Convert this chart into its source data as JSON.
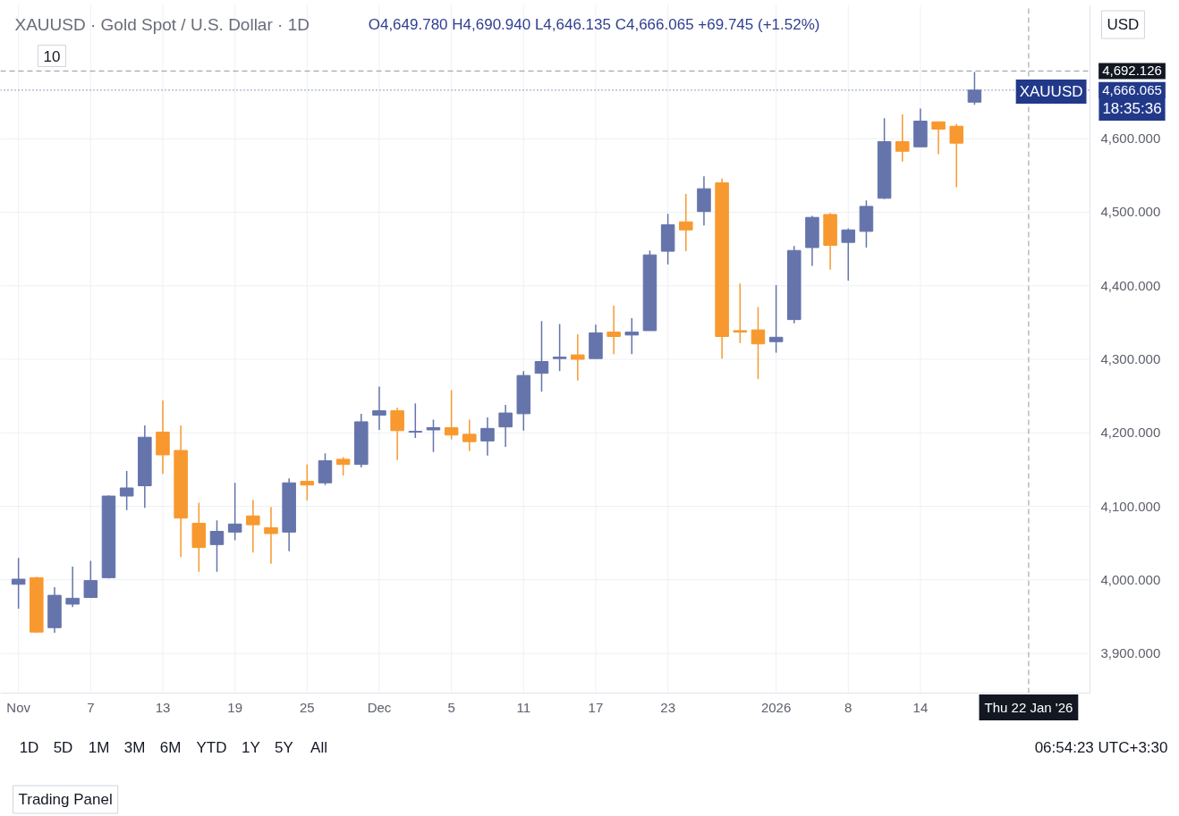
{
  "chart_data": {
    "type": "candlestick",
    "title": "XAUUSD · Gold Spot / U.S. Dollar · 1D",
    "subtitle": "O4,649.780 H4,690.940 L4,646.135 C4,666.065 +69.745 (+1.52%)",
    "categories": [
      "Nov",
      null,
      null,
      null,
      "7",
      null,
      null,
      null,
      "13",
      null,
      null,
      null,
      "19",
      null,
      null,
      null,
      "25",
      null,
      null,
      null,
      "Dec",
      null,
      null,
      null,
      "5",
      null,
      null,
      null,
      "11",
      null,
      null,
      null,
      "17",
      null,
      null,
      null,
      "23",
      null,
      null,
      null,
      null,
      null,
      "2026",
      null,
      null,
      null,
      "8",
      null,
      null,
      null,
      "14",
      null,
      null,
      null,
      null,
      null,
      "Thu 22 Jan '26"
    ],
    "ohlc": [
      [
        3994,
        4030,
        3961,
        4001
      ],
      [
        4003,
        4004,
        3928,
        3929
      ],
      [
        3935,
        3990,
        3928,
        3979
      ],
      [
        3967,
        4018,
        3963,
        3975
      ],
      [
        3976,
        4026,
        3976,
        3999
      ],
      [
        4003,
        4115,
        4002,
        4114
      ],
      [
        4114,
        4148,
        4095,
        4125
      ],
      [
        4128,
        4210,
        4098,
        4194
      ],
      [
        4201,
        4244,
        4144,
        4170
      ],
      [
        4176,
        4210,
        4031,
        4084
      ],
      [
        4077,
        4105,
        4011,
        4044
      ],
      [
        4048,
        4081,
        4011,
        4066
      ],
      [
        4065,
        4132,
        4054,
        4076
      ],
      [
        4087,
        4109,
        4037,
        4075
      ],
      [
        4071,
        4099,
        4022,
        4063
      ],
      [
        4065,
        4138,
        4039,
        4132
      ],
      [
        4134,
        4157,
        4108,
        4129
      ],
      [
        4132,
        4172,
        4129,
        4162
      ],
      [
        4164,
        4167,
        4142,
        4157
      ],
      [
        4157,
        4226,
        4153,
        4215
      ],
      [
        4224,
        4263,
        4204,
        4230
      ],
      [
        4230,
        4234,
        4163,
        4203
      ],
      [
        4201,
        4240,
        4193,
        4202
      ],
      [
        4204,
        4218,
        4174,
        4207
      ],
      [
        4207,
        4258,
        4191,
        4197
      ],
      [
        4198,
        4218,
        4175,
        4188
      ],
      [
        4189,
        4221,
        4169,
        4206
      ],
      [
        4208,
        4238,
        4181,
        4227
      ],
      [
        4226,
        4284,
        4203,
        4278
      ],
      [
        4281,
        4352,
        4256,
        4297
      ],
      [
        4301,
        4348,
        4284,
        4303
      ],
      [
        4306,
        4334,
        4271,
        4300
      ],
      [
        4301,
        4347,
        4301,
        4336
      ],
      [
        4337,
        4373,
        4307,
        4331
      ],
      [
        4333,
        4356,
        4307,
        4337
      ],
      [
        4339,
        4448,
        4339,
        4442
      ],
      [
        4447,
        4498,
        4429,
        4483
      ],
      [
        4487,
        4525,
        4447,
        4476
      ],
      [
        4501,
        4549,
        4482,
        4532
      ],
      [
        4540,
        4546,
        4301,
        4331
      ],
      [
        4339,
        4403,
        4322,
        4337
      ],
      [
        4340,
        4371,
        4273,
        4321
      ],
      [
        4324,
        4401,
        4309,
        4330
      ],
      [
        4354,
        4454,
        4349,
        4448
      ],
      [
        4452,
        4495,
        4427,
        4493
      ],
      [
        4497,
        4499,
        4422,
        4455
      ],
      [
        4459,
        4478,
        4407,
        4476
      ],
      [
        4474,
        4516,
        4452,
        4508
      ],
      [
        4519,
        4628,
        4518,
        4596
      ],
      [
        4596,
        4633,
        4569,
        4583
      ],
      [
        4589,
        4641,
        4589,
        4624
      ],
      [
        4623,
        4623,
        4579,
        4613
      ],
      [
        4617,
        4620,
        4534,
        4594
      ],
      [
        4649.78,
        4690.94,
        4646.135,
        4666.065
      ],
      null,
      null,
      null
    ],
    "colors": [
      "#6574ab",
      "#f7992f",
      "#6574ab",
      "#6574ab",
      "#6574ab",
      "#6574ab",
      "#6574ab",
      "#6574ab",
      "#f7992f",
      "#f7992f",
      "#f7992f",
      "#6574ab",
      "#6574ab",
      "#f7992f",
      "#f7992f",
      "#6574ab",
      "#f7992f",
      "#6574ab",
      "#f7992f",
      "#6574ab",
      "#6574ab",
      "#f7992f",
      "#6574ab",
      "#6574ab",
      "#f7992f",
      "#f7992f",
      "#6574ab",
      "#6574ab",
      "#6574ab",
      "#6574ab",
      "#6574ab",
      "#f7992f",
      "#6574ab",
      "#f7992f",
      "#6574ab",
      "#6574ab",
      "#6574ab",
      "#f7992f",
      "#6574ab",
      "#f7992f",
      "#f7992f",
      "#f7992f",
      "#6574ab",
      "#6574ab",
      "#6574ab",
      "#f7992f",
      "#6574ab",
      "#6574ab",
      "#6574ab",
      "#f7992f",
      "#6574ab",
      "#f7992f",
      "#f7992f",
      "#6574ab",
      null,
      null,
      null
    ],
    "ylim": [
      3846,
      4782
    ],
    "yticks": [
      {
        "value": 3900,
        "label": "3,900.000"
      },
      {
        "value": 4000,
        "label": "4,000.000"
      },
      {
        "value": 4100,
        "label": "4,100.000"
      },
      {
        "value": 4200,
        "label": "4,200.000"
      },
      {
        "value": 4300,
        "label": "4,300.000"
      },
      {
        "value": 4400,
        "label": "4,400.000"
      },
      {
        "value": 4500,
        "label": "4,500.000"
      },
      {
        "value": 4600,
        "label": "4,600.000"
      }
    ],
    "grid": true,
    "ref_lines": [
      {
        "axis": "y",
        "value": 4692.126,
        "label": "4,692.126",
        "color": "#9598a1",
        "line_style": "dashed"
      },
      {
        "axis": "y",
        "value": 4666.065,
        "label": "4,666.065",
        "color": "#22398a",
        "line_style": "dotted"
      },
      {
        "axis": "x",
        "value": "Thu 22 Jan '26",
        "color": "#9598a1",
        "line_style": "dashed"
      }
    ],
    "annotations": [
      "10",
      "USD",
      "XAUUSD",
      "18:35:36",
      "1D",
      "5D",
      "1M",
      "3M",
      "6M",
      "YTD",
      "1Y",
      "5Y",
      "All",
      "06:54:23 UTC+3:30",
      "Trading Panel"
    ]
  }
}
